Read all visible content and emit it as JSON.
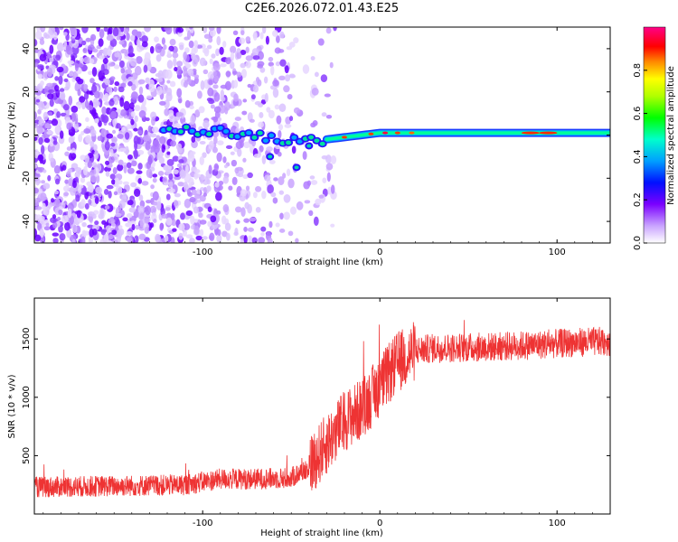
{
  "title": "C2E6.2026.072.01.43.E25",
  "chart_data": [
    {
      "type": "heatmap",
      "name": "spectrogram",
      "xlabel": "Height of straight line (km)",
      "ylabel": "Frequency (Hz)",
      "xlim": [
        -195,
        130
      ],
      "ylim": [
        -50,
        50
      ],
      "xticks": [
        -100,
        0,
        100
      ],
      "yticks": [
        -40,
        -20,
        0,
        20,
        40
      ],
      "description_ridge": [
        {
          "x": -120,
          "y": 3
        },
        {
          "x": -100,
          "y": 2
        },
        {
          "x": -80,
          "y": 1
        },
        {
          "x": -60,
          "y": -2
        },
        {
          "x": -45,
          "y": -3
        },
        {
          "x": -30,
          "y": -2
        },
        {
          "x": -10,
          "y": 0
        },
        {
          "x": 0,
          "y": 1
        },
        {
          "x": 40,
          "y": 1
        },
        {
          "x": 90,
          "y": 1
        },
        {
          "x": 130,
          "y": 1
        }
      ],
      "colorbar": {
        "label": "Normalized spectral amplitude",
        "range": [
          0.0,
          1.0
        ],
        "ticks": [
          0.0,
          0.2,
          0.4,
          0.6,
          0.8
        ]
      }
    },
    {
      "type": "line",
      "name": "snr",
      "xlabel": "Height of straight line (km)",
      "ylabel": "SNR (10 * v/v)",
      "xlim": [
        -195,
        130
      ],
      "ylim": [
        0,
        1850
      ],
      "xticks": [
        -100,
        0,
        100
      ],
      "yticks": [
        500,
        1000,
        1500
      ],
      "color": "#ee3333",
      "x": [
        -195,
        -150,
        -110,
        -90,
        -70,
        -50,
        -40,
        -30,
        -20,
        -10,
        0,
        10,
        20,
        30,
        60,
        90,
        110,
        130
      ],
      "y": [
        230,
        240,
        250,
        300,
        300,
        310,
        400,
        600,
        800,
        900,
        1100,
        1300,
        1400,
        1420,
        1430,
        1450,
        1470,
        1480
      ]
    }
  ]
}
